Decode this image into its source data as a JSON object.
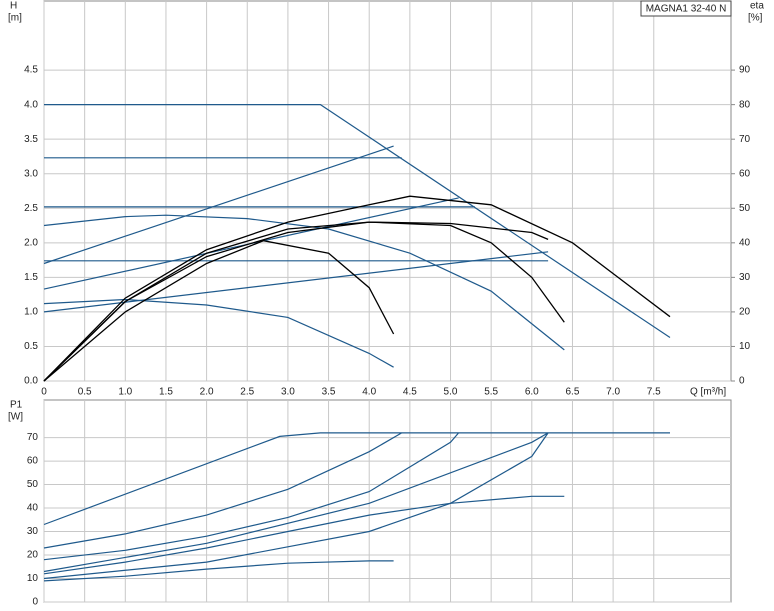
{
  "chart_data": [
    {
      "type": "line",
      "title": "MAGNA1 32-40 N",
      "ylabel": "H",
      "yunit": "[m]",
      "y2label": "eta",
      "y2unit": "[%]",
      "xlabel": "Q [m³/h]",
      "xlim": [
        0,
        8.45
      ],
      "ylim": [
        0,
        5.5
      ],
      "y2lim": [
        0,
        110
      ],
      "grid": true,
      "xticks": [
        0,
        0.5,
        {
          "value": 1,
          "label": "1.0"
        },
        1.5,
        {
          "value": 2,
          "label": "2.0"
        },
        2.5,
        {
          "value": 3,
          "label": "3.0"
        },
        3.5,
        {
          "value": 4,
          "label": "4.0"
        },
        4.5,
        {
          "value": 5,
          "label": "5.0"
        },
        5.5,
        {
          "value": 6,
          "label": "6.0"
        },
        6.5,
        {
          "value": 7,
          "label": "7.0"
        },
        7.5
      ],
      "yticks": [
        {
          "value": 0,
          "label": "0.0"
        },
        0.5,
        {
          "value": 1,
          "label": "1.0"
        },
        1.5,
        {
          "value": 2,
          "label": "2.0"
        },
        2.5,
        {
          "value": 3,
          "label": "3.0"
        },
        3.5,
        {
          "value": 4,
          "label": "4.0"
        },
        4.5
      ],
      "y2ticks": [
        0,
        10,
        20,
        30,
        40,
        50,
        60,
        70,
        80,
        90
      ],
      "series": [
        {
          "color": "#1f5a8c",
          "x": [
            0,
            3.4,
            7.7
          ],
          "values": [
            4.0,
            4.0,
            0.63
          ]
        },
        {
          "color": "#1f5a8c",
          "x": [
            0,
            4.4
          ],
          "values": [
            3.23,
            3.23
          ]
        },
        {
          "color": "#1f5a8c",
          "x": [
            0,
            5.3
          ],
          "values": [
            2.52,
            2.52
          ]
        },
        {
          "color": "#1f5a8c",
          "x": [
            0,
            6.2
          ],
          "values": [
            1.74,
            1.74
          ]
        },
        {
          "color": "#1f5a8c",
          "x": [
            0,
            4.3
          ],
          "values": [
            1.7,
            3.4
          ]
        },
        {
          "color": "#1f5a8c",
          "x": [
            0,
            5.1
          ],
          "values": [
            1.33,
            2.65
          ]
        },
        {
          "color": "#1f5a8c",
          "x": [
            0,
            6.2
          ],
          "values": [
            1.0,
            1.87
          ]
        },
        {
          "color": "#1f5a8c",
          "x": [
            0,
            1,
            1.5,
            2.5,
            3.5,
            4.5,
            5.5,
            6.4
          ],
          "values": [
            2.25,
            2.38,
            2.4,
            2.35,
            2.2,
            1.85,
            1.3,
            0.45
          ]
        },
        {
          "color": "#1f5a8c",
          "x": [
            0,
            1,
            2,
            3,
            4,
            4.3
          ],
          "values": [
            1.12,
            1.18,
            1.1,
            0.92,
            0.4,
            0.2
          ]
        },
        {
          "color": "#000000",
          "axis": "y2",
          "x": [
            0,
            1,
            2,
            3,
            4,
            4.5,
            5.5,
            6.5,
            7.7
          ],
          "values": [
            0,
            24,
            38,
            46,
            51,
            53.5,
            51,
            40,
            18.6
          ]
        },
        {
          "color": "#000000",
          "axis": "y2",
          "x": [
            0,
            1,
            2,
            3,
            4,
            5,
            5.5,
            6,
            6.4
          ],
          "values": [
            0,
            23,
            36,
            43,
            46,
            45,
            40,
            30,
            17
          ]
        },
        {
          "color": "#000000",
          "axis": "y2",
          "x": [
            0,
            1,
            2,
            2.7,
            3.5,
            4,
            4.3
          ],
          "values": [
            0,
            20,
            34,
            40.6,
            37,
            27,
            13.6
          ]
        },
        {
          "color": "#000000",
          "axis": "y2",
          "x": [
            0,
            1,
            2,
            3,
            4,
            5,
            6,
            6.2
          ],
          "values": [
            0,
            23,
            37,
            44,
            46,
            45.6,
            43,
            41
          ]
        }
      ]
    },
    {
      "type": "line",
      "ylabel": "P1",
      "yunit": "[W]",
      "xlim": [
        0,
        8.45
      ],
      "ylim": [
        0,
        86
      ],
      "grid": true,
      "xticks": [
        0,
        0.5,
        1,
        1.5,
        2,
        2.5,
        3,
        3.5,
        4,
        4.5,
        5,
        5.5,
        6,
        6.5,
        7,
        7.5
      ],
      "yticks": [
        0,
        10,
        20,
        30,
        40,
        50,
        60,
        70
      ],
      "series": [
        {
          "color": "#1f5a8c",
          "x": [
            0,
            2.9,
            3.4,
            7.7
          ],
          "values": [
            33,
            70.5,
            72,
            72
          ]
        },
        {
          "color": "#1f5a8c",
          "x": [
            0,
            1,
            2,
            3,
            4,
            4.4
          ],
          "values": [
            23,
            29,
            37,
            48,
            64,
            72
          ]
        },
        {
          "color": "#1f5a8c",
          "x": [
            0,
            1,
            2,
            3,
            4,
            5,
            5.1
          ],
          "values": [
            18,
            22,
            28,
            36,
            47,
            68,
            72
          ]
        },
        {
          "color": "#1f5a8c",
          "x": [
            0,
            2,
            4,
            6,
            6.2
          ],
          "values": [
            13,
            25,
            42,
            68,
            72
          ]
        },
        {
          "color": "#1f5a8c",
          "x": [
            0,
            2,
            4,
            5,
            6,
            6.2
          ],
          "values": [
            10,
            17,
            30,
            42,
            62,
            72
          ]
        },
        {
          "color": "#1f5a8c",
          "x": [
            0,
            1,
            2,
            3,
            4,
            5,
            6,
            6.4
          ],
          "values": [
            12,
            17,
            23,
            30,
            37,
            42,
            45,
            45
          ]
        },
        {
          "color": "#1f5a8c",
          "x": [
            0,
            1,
            2,
            3,
            4,
            4.3
          ],
          "values": [
            9,
            11,
            14,
            16.5,
            17.5,
            17.5
          ]
        }
      ]
    }
  ]
}
